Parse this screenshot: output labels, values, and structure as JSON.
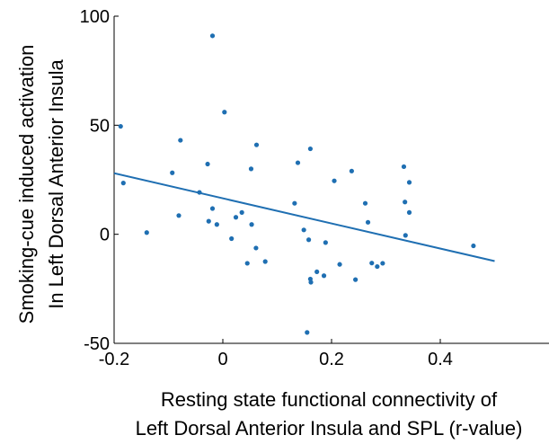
{
  "chart_data": {
    "type": "scatter",
    "title": "",
    "xlabel_lines": [
      "Resting state functional connectivity of",
      "Left Dorsal Anterior Insula and SPL (r-value)"
    ],
    "ylabel_lines": [
      "Smoking-cue induced activation",
      "In Left Dorsal Anterior Insula"
    ],
    "xlim": [
      -0.2,
      0.6
    ],
    "ylim": [
      -50,
      100
    ],
    "x_ticks": [
      -0.2,
      0,
      0.2,
      0.4
    ],
    "x_tick_labels": [
      "-0.2",
      "0",
      "0.2",
      "0.4"
    ],
    "y_ticks": [
      -50,
      0,
      50,
      100
    ],
    "y_tick_labels": [
      "-50",
      "0",
      "50",
      "100"
    ],
    "grid": false,
    "colors": {
      "points": "#1f6fb2",
      "fit_line": "#1f6fb2",
      "axis": "#000000"
    },
    "points": [
      {
        "x": -0.188,
        "y": 49.5
      },
      {
        "x": -0.183,
        "y": 23.5
      },
      {
        "x": -0.14,
        "y": 0.8
      },
      {
        "x": -0.093,
        "y": 28.2
      },
      {
        "x": -0.078,
        "y": 43.1
      },
      {
        "x": -0.081,
        "y": 8.6
      },
      {
        "x": -0.043,
        "y": 19.2
      },
      {
        "x": -0.028,
        "y": 32.2
      },
      {
        "x": -0.026,
        "y": 6.0
      },
      {
        "x": -0.019,
        "y": 11.8
      },
      {
        "x": -0.019,
        "y": 91.0
      },
      {
        "x": -0.011,
        "y": 4.5
      },
      {
        "x": 0.003,
        "y": 56.0
      },
      {
        "x": 0.016,
        "y": -2.0
      },
      {
        "x": 0.024,
        "y": 7.8
      },
      {
        "x": 0.035,
        "y": 10.0
      },
      {
        "x": 0.045,
        "y": -13.3
      },
      {
        "x": 0.052,
        "y": 30.0
      },
      {
        "x": 0.053,
        "y": 4.5
      },
      {
        "x": 0.061,
        "y": -6.3
      },
      {
        "x": 0.062,
        "y": 41.0
      },
      {
        "x": 0.078,
        "y": -12.5
      },
      {
        "x": 0.132,
        "y": 14.2
      },
      {
        "x": 0.138,
        "y": 32.8
      },
      {
        "x": 0.149,
        "y": 2.0
      },
      {
        "x": 0.155,
        "y": -45.0
      },
      {
        "x": 0.158,
        "y": -2.5
      },
      {
        "x": 0.161,
        "y": -20.5
      },
      {
        "x": 0.161,
        "y": 39.2
      },
      {
        "x": 0.162,
        "y": -22.0
      },
      {
        "x": 0.173,
        "y": -17.2
      },
      {
        "x": 0.186,
        "y": -19.0
      },
      {
        "x": 0.189,
        "y": -3.8
      },
      {
        "x": 0.205,
        "y": 24.5
      },
      {
        "x": 0.215,
        "y": -13.8
      },
      {
        "x": 0.237,
        "y": 29.0
      },
      {
        "x": 0.244,
        "y": -20.8
      },
      {
        "x": 0.262,
        "y": 14.2
      },
      {
        "x": 0.267,
        "y": 5.5
      },
      {
        "x": 0.274,
        "y": -13.2
      },
      {
        "x": 0.284,
        "y": -14.8
      },
      {
        "x": 0.294,
        "y": -13.3
      },
      {
        "x": 0.333,
        "y": 31.0
      },
      {
        "x": 0.335,
        "y": 14.8
      },
      {
        "x": 0.336,
        "y": -0.5
      },
      {
        "x": 0.343,
        "y": 23.8
      },
      {
        "x": 0.343,
        "y": 10.0
      },
      {
        "x": 0.461,
        "y": -5.3
      }
    ],
    "fit_line": {
      "x": [
        -0.2,
        0.5
      ],
      "y": [
        28.0,
        -12.3
      ]
    }
  }
}
